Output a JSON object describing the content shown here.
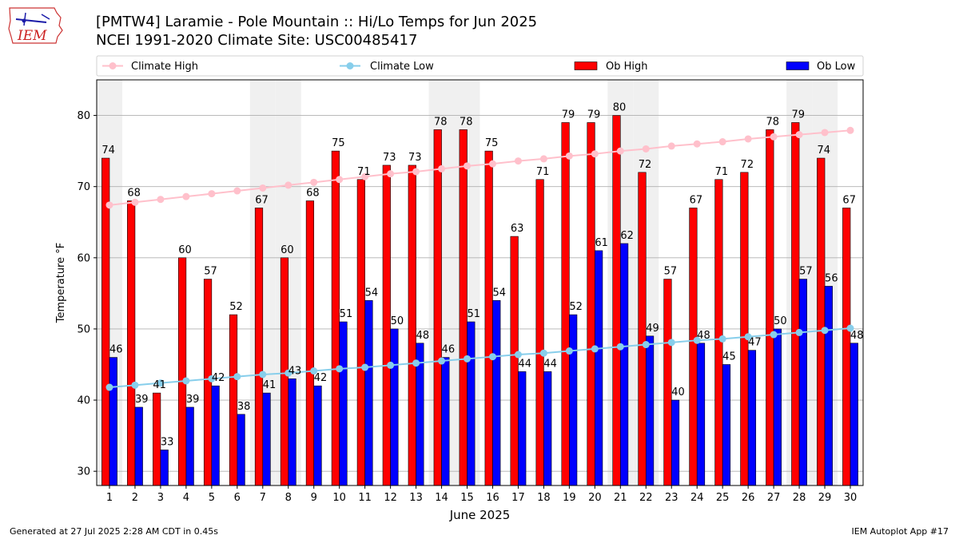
{
  "header": {
    "title_line1": "[PMTW4] Laramie - Pole Mountain :: Hi/Lo Temps for Jun 2025",
    "title_line2": "NCEI 1991-2020 Climate Site: USC00485417",
    "logo_text": "IEM",
    "logo_icon": "iowa-state-outline-icon"
  },
  "footer": {
    "left": "Generated at 27 Jul 2025 2:28 AM CDT in 0.45s",
    "right": "IEM Autoplot App #17"
  },
  "colors": {
    "ob_high": "#ff0000",
    "ob_low": "#0000ff",
    "climate_high": "#ffc0cb",
    "climate_low": "#87ceeb",
    "weekend_band": "#f0f0f0",
    "grid": "#b0b0b0"
  },
  "chart_data": {
    "type": "bar",
    "xlabel": "June 2025",
    "ylabel": "Temperature °F",
    "ylim": [
      28,
      85
    ],
    "yticks": [
      30,
      40,
      50,
      60,
      70,
      80
    ],
    "grid": "horizontal",
    "legend_placement": "top",
    "categories": [
      "1",
      "2",
      "3",
      "4",
      "5",
      "6",
      "7",
      "8",
      "9",
      "10",
      "11",
      "12",
      "13",
      "14",
      "15",
      "16",
      "17",
      "18",
      "19",
      "20",
      "21",
      "22",
      "23",
      "24",
      "25",
      "26",
      "27",
      "28",
      "29",
      "30"
    ],
    "weekend_days": [
      1,
      7,
      8,
      14,
      15,
      21,
      22,
      28,
      29
    ],
    "series": [
      {
        "name": "Climate High",
        "kind": "line",
        "values": [
          67.4,
          67.8,
          68.2,
          68.6,
          69.0,
          69.4,
          69.8,
          70.2,
          70.6,
          71.0,
          71.4,
          71.8,
          72.1,
          72.5,
          72.9,
          73.2,
          73.6,
          73.9,
          74.3,
          74.6,
          75.0,
          75.3,
          75.7,
          76.0,
          76.3,
          76.7,
          77.0,
          77.3,
          77.6,
          77.9
        ]
      },
      {
        "name": "Climate Low",
        "kind": "line",
        "values": [
          41.8,
          42.1,
          42.4,
          42.7,
          43.0,
          43.3,
          43.6,
          43.8,
          44.1,
          44.4,
          44.6,
          44.9,
          45.2,
          45.5,
          45.8,
          46.1,
          46.4,
          46.6,
          46.9,
          47.2,
          47.5,
          47.8,
          48.1,
          48.4,
          48.6,
          48.9,
          49.2,
          49.5,
          49.8,
          50.1
        ]
      },
      {
        "name": "Ob High",
        "kind": "bar",
        "values": [
          74,
          68,
          41,
          60,
          57,
          52,
          67,
          60,
          68,
          75,
          71,
          73,
          73,
          78,
          78,
          75,
          63,
          71,
          79,
          79,
          80,
          72,
          57,
          67,
          71,
          72,
          78,
          79,
          74,
          67
        ]
      },
      {
        "name": "Ob Low",
        "kind": "bar",
        "values": [
          46,
          39,
          33,
          39,
          42,
          38,
          41,
          43,
          42,
          51,
          54,
          50,
          48,
          46,
          51,
          54,
          44,
          44,
          52,
          61,
          62,
          49,
          40,
          48,
          45,
          47,
          50,
          57,
          56,
          48
        ]
      }
    ]
  }
}
